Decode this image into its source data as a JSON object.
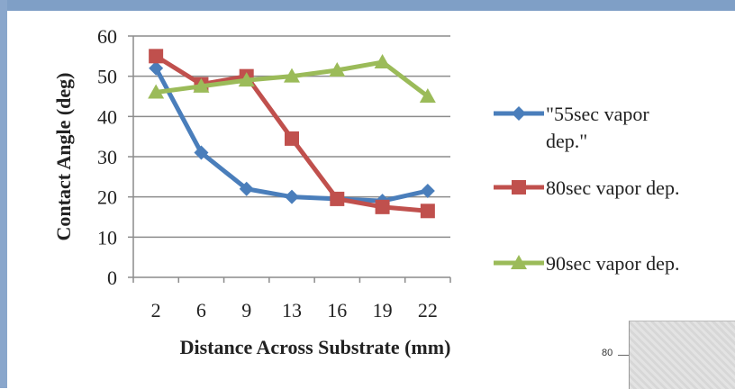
{
  "chart_data": {
    "type": "line",
    "title": "",
    "xlabel": "Distance Across Substrate (mm)",
    "ylabel": "Contact Angle (deg)",
    "categories": [
      "2",
      "6",
      "9",
      "13",
      "16",
      "19",
      "22"
    ],
    "ylim": [
      0,
      60
    ],
    "yticks": [
      0,
      10,
      20,
      30,
      40,
      50,
      60
    ],
    "grid": true,
    "legend_position": "right",
    "series": [
      {
        "name": "\"55sec vapor dep.\"",
        "color": "#4a7ebb",
        "marker": "diamond",
        "values": [
          52,
          31,
          22,
          20,
          19.5,
          19,
          21.5
        ]
      },
      {
        "name": "80sec vapor dep.",
        "color": "#c0504d",
        "marker": "square",
        "values": [
          55,
          48,
          50,
          34.5,
          19.5,
          17.5,
          16.5
        ]
      },
      {
        "name": "90sec vapor dep.",
        "color": "#9bbb59",
        "marker": "triangle",
        "values": [
          46,
          47.5,
          49,
          50,
          51.5,
          53.5,
          45
        ]
      }
    ],
    "legend_lines": [
      [
        "\"55sec vapor",
        "dep.\""
      ],
      [
        "80sec vapor dep."
      ],
      [
        "90sec vapor dep."
      ]
    ]
  },
  "inset": {
    "tick_label": "80"
  }
}
